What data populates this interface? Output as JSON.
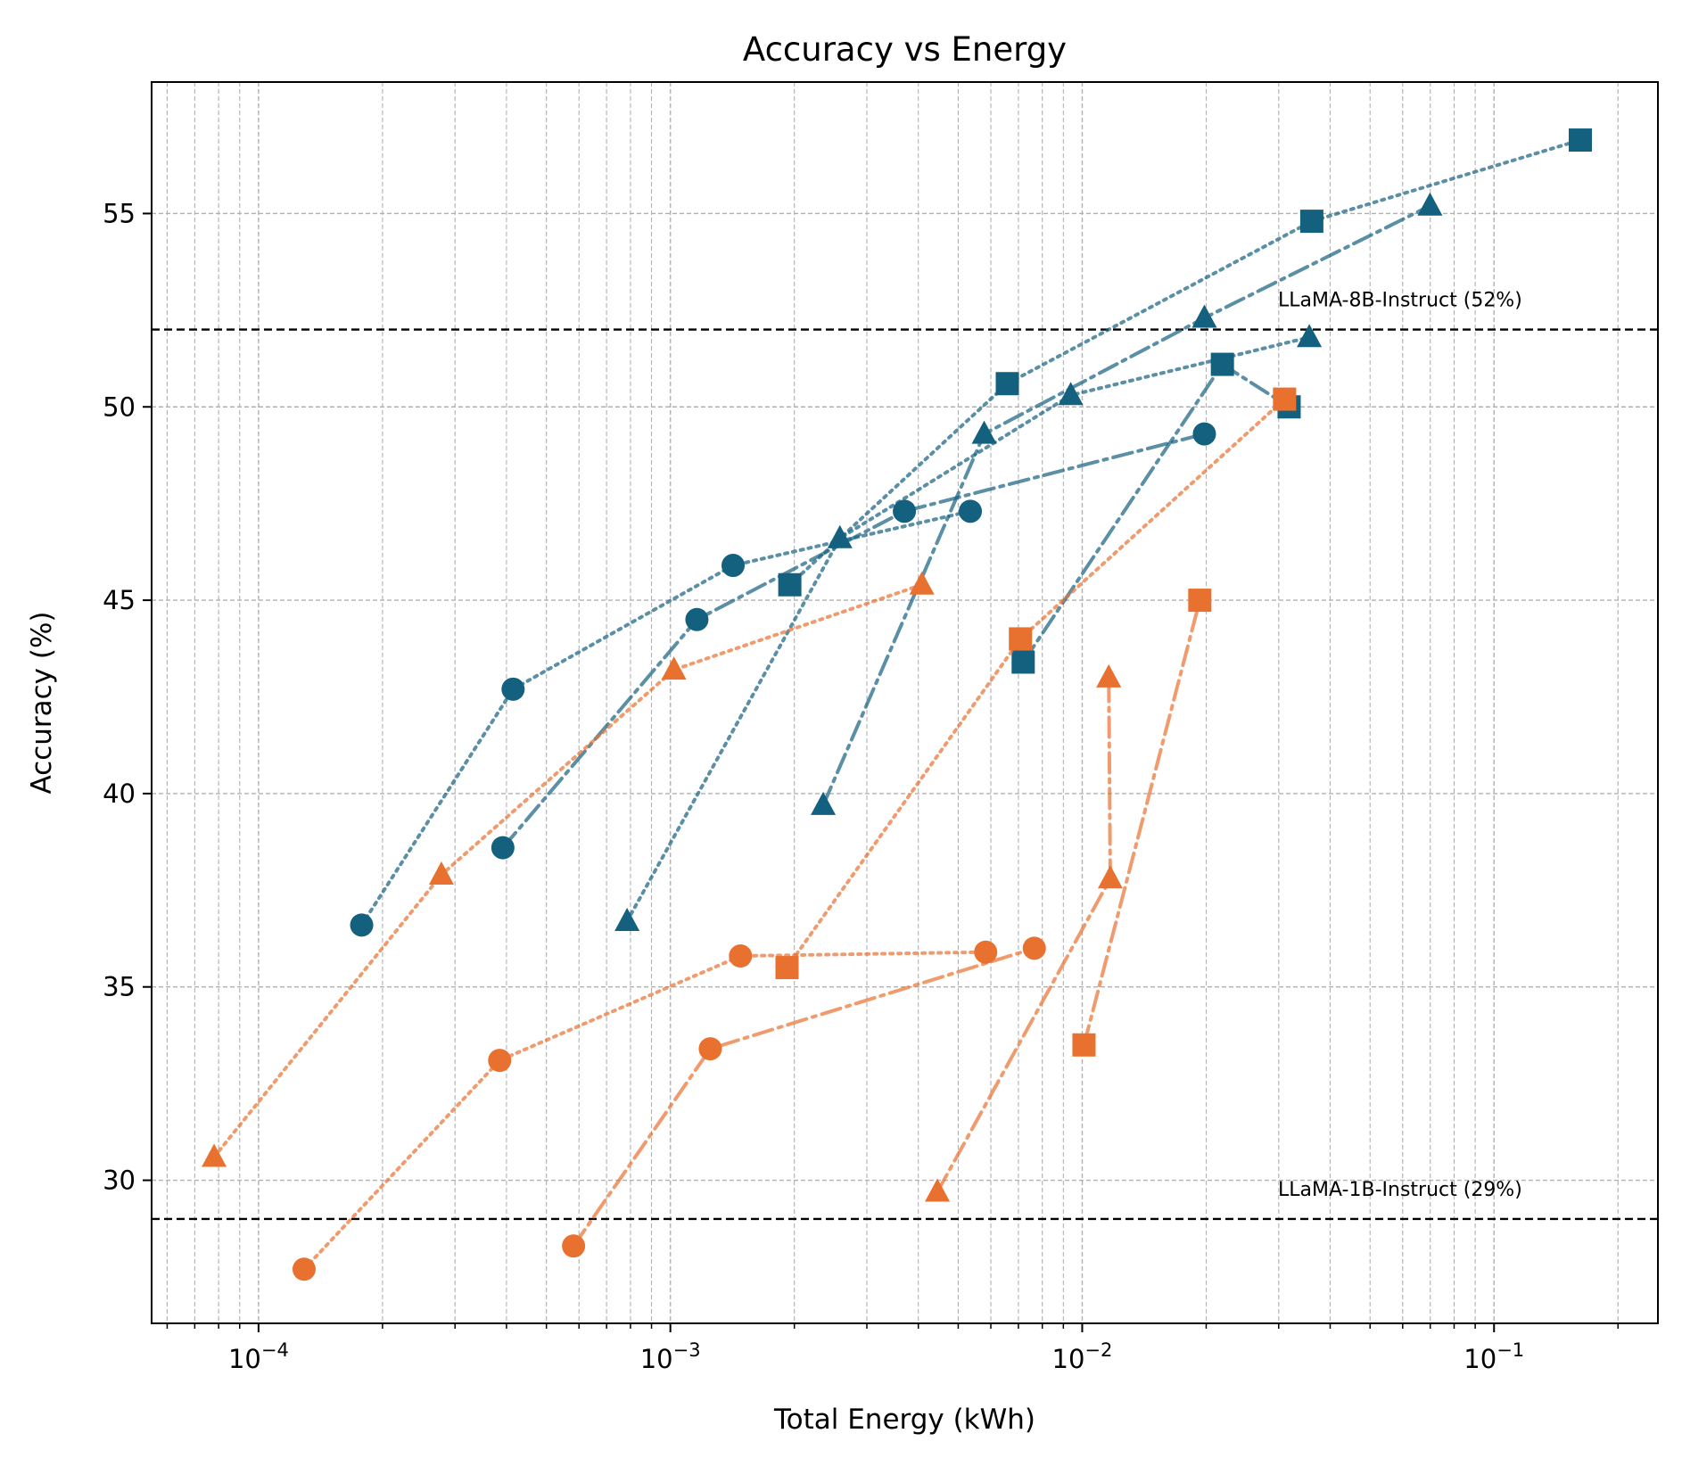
{
  "chart_data": {
    "type": "scatter",
    "title": "Accuracy vs Energy",
    "xlabel": "Total Energy (kWh)",
    "ylabel": "Accuracy (%)",
    "x_scale": "log",
    "xlim": [
      5.5e-05,
      0.25
    ],
    "ylim": [
      26.3,
      58.4
    ],
    "x_ticks": [
      {
        "value": 0.0001,
        "base": "10",
        "exp": "−4"
      },
      {
        "value": 0.001,
        "base": "10",
        "exp": "−3"
      },
      {
        "value": 0.01,
        "base": "10",
        "exp": "−2"
      },
      {
        "value": 0.1,
        "base": "10",
        "exp": "−1"
      }
    ],
    "y_ticks": [
      30,
      35,
      40,
      45,
      50,
      55
    ],
    "grid": true,
    "colors": {
      "blue": "#14607f",
      "orange": "#e9712f"
    },
    "reference_lines": [
      {
        "y": 52,
        "label": "LLaMA-8B-Instruct (52%)"
      },
      {
        "y": 29,
        "label": "LLaMA-1B-Instruct (29%)"
      }
    ],
    "series": [
      {
        "color": "#14607f",
        "marker": "circle",
        "linestyle": "dotted",
        "points": [
          [
            0.000178,
            36.6
          ],
          [
            0.000415,
            42.7
          ],
          [
            0.00142,
            45.9
          ],
          [
            0.00535,
            47.3
          ]
        ]
      },
      {
        "color": "#14607f",
        "marker": "circle",
        "linestyle": "dashdot",
        "points": [
          [
            0.000392,
            38.6
          ],
          [
            0.00116,
            44.5
          ],
          [
            0.0037,
            47.3
          ],
          [
            0.0198,
            49.3
          ]
        ]
      },
      {
        "color": "#14607f",
        "marker": "triangle",
        "linestyle": "dotted",
        "points": [
          [
            0.000785,
            36.7
          ],
          [
            0.00258,
            46.6
          ],
          [
            0.00938,
            50.3
          ],
          [
            0.0356,
            51.8
          ]
        ]
      },
      {
        "color": "#14607f",
        "marker": "triangle",
        "linestyle": "dashdot",
        "points": [
          [
            0.00235,
            39.7
          ],
          [
            0.00578,
            49.3
          ],
          [
            0.0198,
            52.3
          ],
          [
            0.0699,
            55.2
          ]
        ]
      },
      {
        "color": "#14607f",
        "marker": "square",
        "linestyle": "dotted",
        "points": [
          [
            0.00195,
            45.4
          ],
          [
            0.00658,
            50.6
          ],
          [
            0.0361,
            54.8
          ],
          [
            0.162,
            56.9
          ]
        ]
      },
      {
        "color": "#14607f",
        "marker": "square",
        "linestyle": "dashdot",
        "points": [
          [
            0.00719,
            43.4
          ],
          [
            0.0219,
            51.1
          ],
          [
            0.0318,
            50.0
          ]
        ]
      },
      {
        "color": "#e9712f",
        "marker": "circle",
        "linestyle": "dotted",
        "points": [
          [
            0.000129,
            27.7
          ],
          [
            0.000385,
            33.1
          ],
          [
            0.00148,
            35.8
          ],
          [
            0.00583,
            35.9
          ]
        ]
      },
      {
        "color": "#e9712f",
        "marker": "circle",
        "linestyle": "dashdot",
        "points": [
          [
            0.000582,
            28.3
          ],
          [
            0.00125,
            33.4
          ],
          [
            0.00765,
            36.0
          ]
        ]
      },
      {
        "color": "#e9712f",
        "marker": "triangle",
        "linestyle": "dotted",
        "points": [
          [
            7.8e-05,
            30.6
          ],
          [
            0.000278,
            37.9
          ],
          [
            0.00102,
            43.2
          ],
          [
            0.00408,
            45.4
          ]
        ]
      },
      {
        "color": "#e9712f",
        "marker": "triangle",
        "linestyle": "dashdot",
        "points": [
          [
            0.00445,
            29.7
          ],
          [
            0.0117,
            37.8
          ],
          [
            0.0116,
            43.0
          ]
        ]
      },
      {
        "color": "#e9712f",
        "marker": "square",
        "linestyle": "dotted",
        "points": [
          [
            0.00192,
            35.5
          ],
          [
            0.00708,
            44.0
          ],
          [
            0.031,
            50.2
          ]
        ]
      },
      {
        "color": "#e9712f",
        "marker": "square",
        "linestyle": "dashdot",
        "points": [
          [
            0.0101,
            33.5
          ],
          [
            0.0193,
            45.0
          ]
        ]
      }
    ]
  }
}
